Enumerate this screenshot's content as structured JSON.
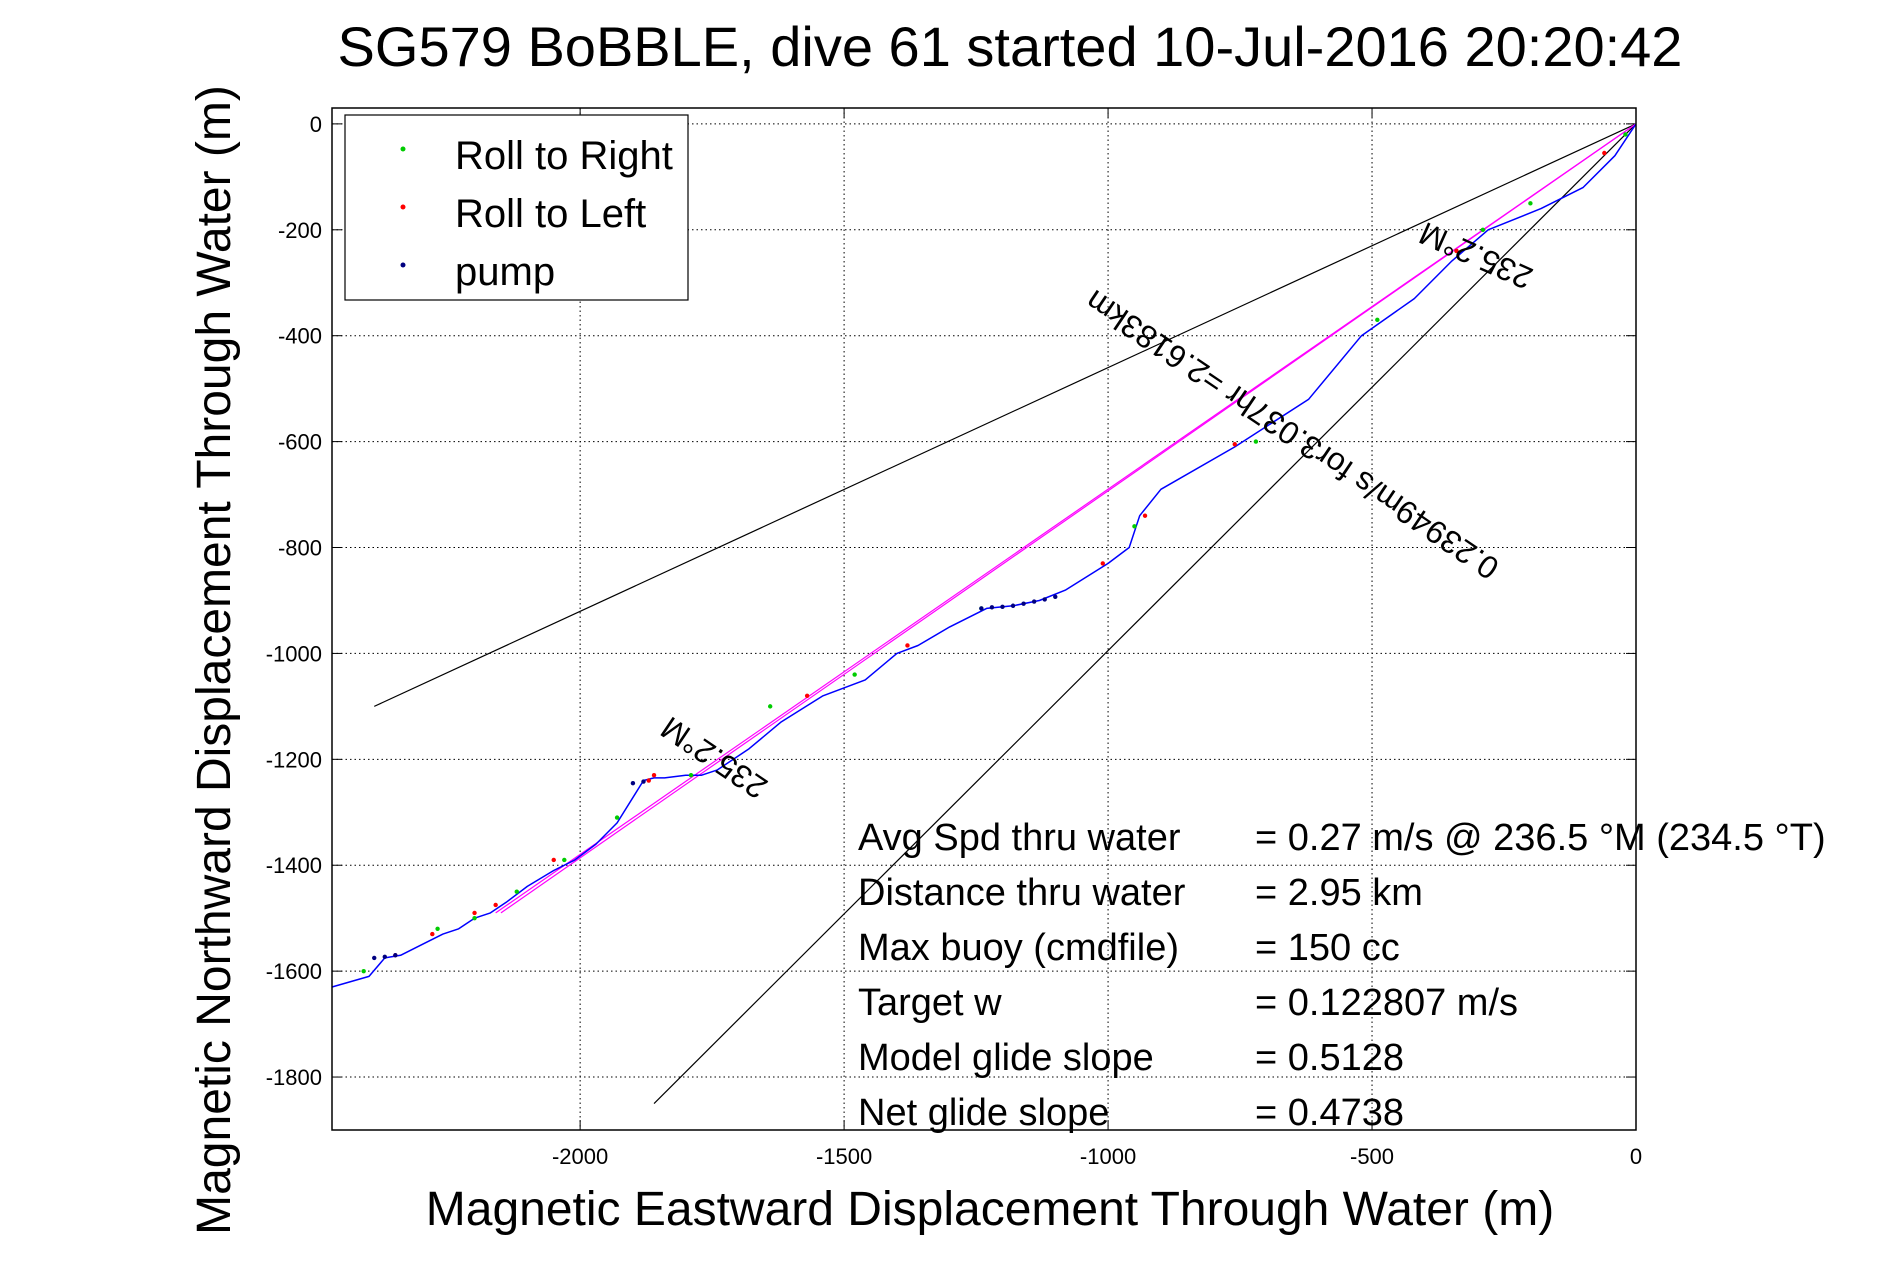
{
  "chart_data": {
    "type": "line",
    "title": "SG579 BoBBLE, dive 61 started 10-Jul-2016 20:20:42",
    "xlabel": "Magnetic Eastward Displacement Through Water (m)",
    "ylabel": "Magnetic Northward Displacement Through Water (m)",
    "xlim": [
      -2470,
      0
    ],
    "ylim": [
      -1900,
      30
    ],
    "xticks": [
      -2000,
      -1500,
      -1000,
      -500,
      0
    ],
    "yticks": [
      0,
      -200,
      -400,
      -600,
      -800,
      -1000,
      -1200,
      -1400,
      -1600,
      -1800
    ],
    "grid": true,
    "legend_position": "top-left",
    "legend": [
      {
        "label": "Roll to Right",
        "color": "#00cc00"
      },
      {
        "label": "Roll to Left",
        "color": "#ff0000"
      },
      {
        "label": "pump",
        "color": "#000080"
      }
    ],
    "track": {
      "color": "#0000ff",
      "x": [
        0,
        -40,
        -100,
        -180,
        -280,
        -350,
        -420,
        -520,
        -620,
        -760,
        -900,
        -940,
        -960,
        -1000,
        -1080,
        -1130,
        -1180,
        -1230,
        -1300,
        -1360,
        -1400,
        -1460,
        -1540,
        -1620,
        -1680,
        -1740,
        -1770,
        -1800,
        -1840,
        -1860,
        -1880,
        -1930,
        -1970,
        -2010,
        -2050,
        -2100,
        -2140,
        -2170,
        -2200,
        -2230,
        -2260,
        -2300,
        -2340,
        -2370,
        -2400,
        -2470
      ],
      "y": [
        0,
        -60,
        -120,
        -160,
        -200,
        -260,
        -330,
        -400,
        -520,
        -610,
        -690,
        -740,
        -800,
        -830,
        -880,
        -900,
        -910,
        -915,
        -950,
        -985,
        -1000,
        -1050,
        -1080,
        -1130,
        -1180,
        -1220,
        -1230,
        -1230,
        -1235,
        -1235,
        -1240,
        -1320,
        -1360,
        -1390,
        -1410,
        -1440,
        -1470,
        -1490,
        -1500,
        -1520,
        -1530,
        -1550,
        -1570,
        -1575,
        -1610,
        -1630
      ]
    },
    "roll_right": {
      "x": [
        -20,
        -200,
        -290,
        -340,
        -490,
        -720,
        -950,
        -1240,
        -1480,
        -1640,
        -1790,
        -1930,
        -2030,
        -2120,
        -2200,
        -2270,
        -2410
      ],
      "y": [
        -20,
        -150,
        -200,
        -240,
        -370,
        -600,
        -760,
        -915,
        -1040,
        -1100,
        -1230,
        -1310,
        -1390,
        -1450,
        -1500,
        -1520,
        -1600
      ]
    },
    "roll_left": {
      "x": [
        -60,
        -340,
        -760,
        -930,
        -1010,
        -1380,
        -1570,
        -1860,
        -1870,
        -2050,
        -2160,
        -2200,
        -2280,
        -2350
      ],
      "y": [
        -55,
        -240,
        -605,
        -740,
        -830,
        -985,
        -1080,
        -1230,
        -1240,
        -1390,
        -1475,
        -1490,
        -1530,
        -1570
      ]
    },
    "pump": {
      "x": [
        -1240,
        -1220,
        -1200,
        -1180,
        -1160,
        -1140,
        -1120,
        -1100,
        -1880,
        -1900,
        -2350,
        -2370,
        -2390
      ],
      "y": [
        -915,
        -913,
        -912,
        -910,
        -906,
        -902,
        -898,
        -893,
        -1242,
        -1245,
        -1570,
        -1573,
        -1575
      ]
    },
    "heading_lines": [
      {
        "color": "#000000",
        "x": [
          0,
          -2390
        ],
        "y": [
          0,
          -1100
        ]
      },
      {
        "color": "#000000",
        "x": [
          0,
          -1860
        ],
        "y": [
          0,
          -1850
        ]
      },
      {
        "color": "#ff00ff",
        "x": [
          0,
          -2160
        ],
        "y": [
          0,
          -1490
        ]
      },
      {
        "color": "#ff00ff",
        "x": [
          0,
          -2150
        ],
        "y": [
          0,
          -1490
        ]
      }
    ],
    "annotations": [
      {
        "text": "235.2°M",
        "x": -295,
        "y": -230,
        "rotation": 204
      },
      {
        "text": "0.23949m/s for3.037hr =2.6183km",
        "x": -640,
        "y": -570,
        "rotation": 214
      },
      {
        "text": "235.2°M",
        "x": -1735,
        "y": -1180,
        "rotation": 214
      }
    ],
    "stats": [
      {
        "label": "Avg Spd thru water",
        "value": "=  0.27 m/s @ 236.5 °M (234.5 °T)"
      },
      {
        "label": "Distance thru water",
        "value": "=  2.95 km"
      },
      {
        "label": "Max buoy (cmdfile)",
        "value": "= 150 cc"
      },
      {
        "label": "Target w",
        "value": "= 0.122807 m/s"
      },
      {
        "label": "Model glide slope",
        "value": "= 0.5128"
      },
      {
        "label": "Net glide slope",
        "value": "= 0.4738"
      }
    ]
  }
}
